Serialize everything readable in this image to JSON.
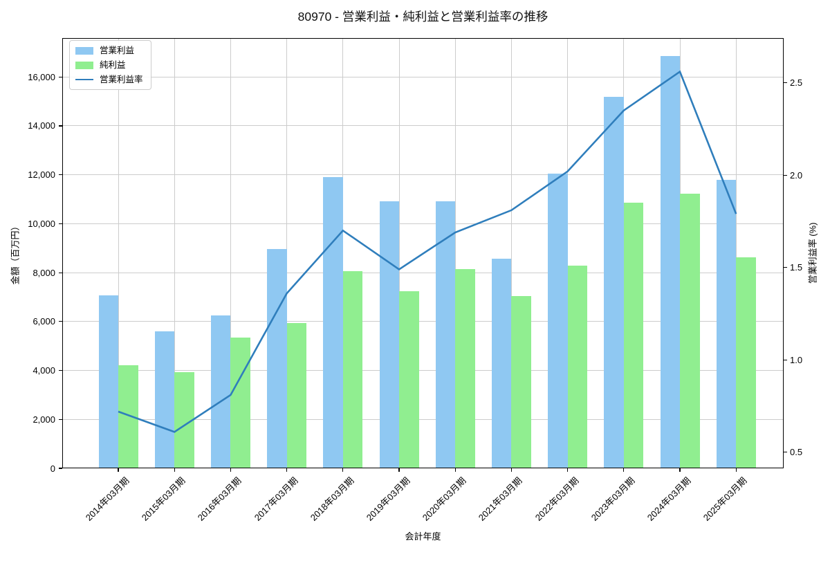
{
  "title": "80970 - 営業利益・純利益と営業利益率の推移",
  "chart_data": {
    "type": "bar+line",
    "title": "80970 - 営業利益・純利益と営業利益率の推移",
    "xlabel": "会計年度",
    "ylabel_left": "金額（百万円）",
    "ylabel_right": "営業利益率 (%)",
    "categories": [
      "2014年03月期",
      "2015年03月期",
      "2016年03月期",
      "2017年03月期",
      "2018年03月期",
      "2019年03月期",
      "2020年03月期",
      "2021年03月期",
      "2022年03月期",
      "2023年03月期",
      "2024年03月期",
      "2025年03月期"
    ],
    "series": [
      {
        "name": "営業利益",
        "type": "bar",
        "axis": "left",
        "color": "#8fc8f2",
        "values": [
          7070,
          5590,
          6240,
          8960,
          11900,
          10910,
          10910,
          8580,
          12050,
          15180,
          16850,
          11790
        ]
      },
      {
        "name": "純利益",
        "type": "bar",
        "axis": "left",
        "color": "#90ee90",
        "values": [
          4200,
          3940,
          5350,
          5940,
          8060,
          7230,
          8140,
          7030,
          8300,
          10870,
          11220,
          8630
        ]
      },
      {
        "name": "営業利益率",
        "type": "line",
        "axis": "right",
        "color": "#2f7ebc",
        "values": [
          0.72,
          0.61,
          0.81,
          1.36,
          1.7,
          1.49,
          1.69,
          1.81,
          2.02,
          2.35,
          2.56,
          1.79
        ]
      }
    ],
    "yticks_left": {
      "values": [
        0,
        2000,
        4000,
        6000,
        8000,
        10000,
        12000,
        14000,
        16000
      ],
      "labels": [
        "0",
        "2,000",
        "4,000",
        "6,000",
        "8,000",
        "10,000",
        "12,000",
        "14,000",
        "16,000"
      ]
    },
    "yticks_right": {
      "values": [
        0.5,
        1.0,
        1.5,
        2.0,
        2.5
      ],
      "labels": [
        "0.5",
        "1.0",
        "1.5",
        "2.0",
        "2.5"
      ]
    },
    "ylim_left": [
      0,
      17590
    ],
    "ylim_right": [
      0.413,
      2.742
    ],
    "grid": true,
    "grid_color": "#cccccc",
    "legend_position": "upper left",
    "background": "#ffffff"
  }
}
